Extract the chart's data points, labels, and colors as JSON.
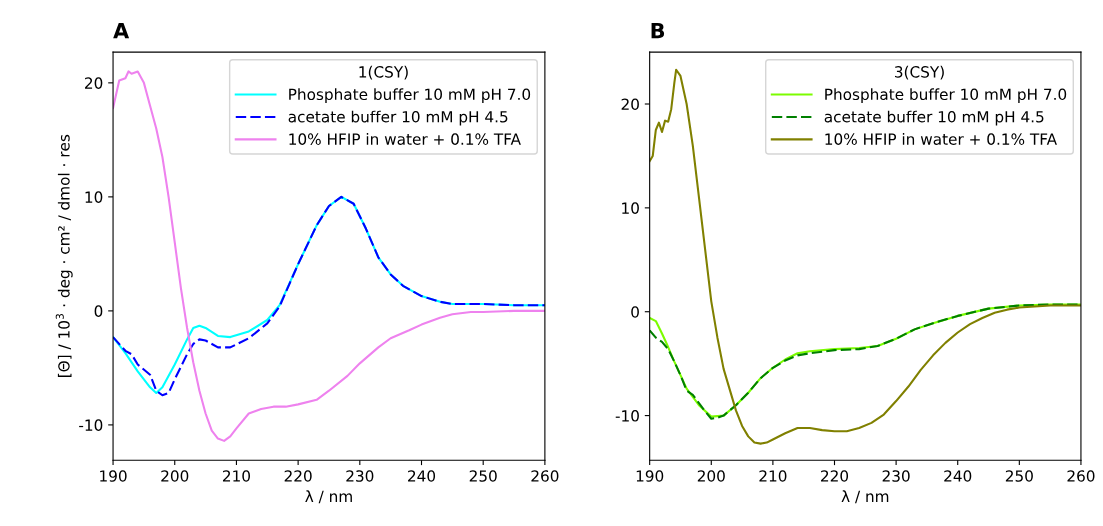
{
  "chart_data": [
    {
      "type": "line",
      "title": "A",
      "xlabel": "λ / nm",
      "ylabel": "[Θ] / 10$^{3}$ · deg · cm² / dmol · res",
      "legend_title": "1(CSY)",
      "legend": "top right",
      "grid": false,
      "xlim": [
        190,
        260
      ],
      "xticks": [
        190,
        200,
        210,
        220,
        230,
        240,
        250,
        260
      ],
      "ylim": [
        -13.1,
        22.7
      ],
      "yticks": [
        -10,
        0,
        10,
        20
      ],
      "series": [
        {
          "name": "Phosphate buffer 10 mM pH 7.0",
          "color": "#00ffff",
          "line_style": "solid",
          "x": [
            190,
            192,
            194,
            196,
            197,
            198,
            200,
            202,
            203,
            204,
            205,
            207,
            209,
            212,
            215,
            217,
            220,
            223,
            225,
            227,
            229,
            231,
            233,
            235,
            237,
            240,
            243,
            245,
            250,
            255,
            260
          ],
          "values": [
            -2.3,
            -3.7,
            -5.3,
            -6.7,
            -7.2,
            -6.7,
            -4.7,
            -2.5,
            -1.5,
            -1.3,
            -1.5,
            -2.2,
            -2.3,
            -1.8,
            -0.8,
            0.5,
            4.1,
            7.5,
            9.2,
            10.0,
            9.4,
            7.2,
            4.7,
            3.2,
            2.2,
            1.3,
            0.8,
            0.6,
            0.6,
            0.5,
            0.5
          ]
        },
        {
          "name": "acetate buffer 10 mM pH 4.5",
          "color": "#0000ff",
          "line_style": "dashed",
          "x": [
            190,
            192,
            193,
            194,
            196,
            197,
            198,
            199,
            200,
            202,
            203,
            204,
            205,
            207,
            209,
            212,
            215,
            217,
            220,
            223,
            225,
            227,
            229,
            231,
            233,
            235,
            237,
            240,
            243,
            245,
            250,
            255,
            260
          ],
          "values": [
            -2.3,
            -3.5,
            -3.8,
            -4.7,
            -5.6,
            -7.0,
            -7.4,
            -7.2,
            -6.0,
            -3.8,
            -2.9,
            -2.5,
            -2.6,
            -3.2,
            -3.2,
            -2.4,
            -1.1,
            0.4,
            4.1,
            7.5,
            9.2,
            10.0,
            9.4,
            7.2,
            4.7,
            3.2,
            2.2,
            1.3,
            0.8,
            0.6,
            0.6,
            0.5,
            0.5
          ]
        },
        {
          "name": "10% HFIP in water + 0.1% TFA",
          "color": "#ee82ee",
          "line_style": "solid",
          "x": [
            190,
            191,
            192,
            192.5,
            193,
            194,
            195,
            196,
            197,
            198,
            199,
            200,
            201,
            202,
            203,
            204,
            205,
            206,
            207,
            208,
            209,
            210,
            212,
            214,
            216,
            218,
            220,
            223,
            225,
            228,
            230,
            233,
            235,
            238,
            240,
            243,
            245,
            248,
            250,
            255,
            260
          ],
          "values": [
            17.8,
            20.2,
            20.4,
            21.0,
            20.8,
            21.0,
            20.0,
            18.0,
            16.0,
            13.5,
            10.0,
            6.0,
            2.0,
            -1.5,
            -4.5,
            -7.0,
            -9.0,
            -10.5,
            -11.2,
            -11.4,
            -11.0,
            -10.3,
            -9.0,
            -8.6,
            -8.4,
            -8.4,
            -8.2,
            -7.8,
            -7.0,
            -5.7,
            -4.6,
            -3.2,
            -2.4,
            -1.7,
            -1.2,
            -0.6,
            -0.3,
            -0.1,
            -0.1,
            0.0,
            0.0
          ]
        }
      ]
    },
    {
      "type": "line",
      "title": "B",
      "xlabel": "λ / nm",
      "legend_title": "3(CSY)",
      "legend": "top right",
      "grid": false,
      "xlim": [
        190,
        260
      ],
      "xticks": [
        190,
        200,
        210,
        220,
        230,
        240,
        250,
        260
      ],
      "ylim": [
        -14.3,
        25.0
      ],
      "yticks": [
        -10,
        0,
        10,
        20
      ],
      "series": [
        {
          "name": "Phosphate buffer 10 mM pH 7.0",
          "color": "#7cfc00",
          "line_style": "solid",
          "x": [
            190,
            191,
            192,
            193,
            194,
            195,
            196,
            198,
            200,
            202,
            204,
            206,
            208,
            210,
            212,
            214,
            216,
            220,
            224,
            227,
            230,
            233,
            236,
            240,
            245,
            250,
            255,
            260
          ],
          "values": [
            -0.6,
            -0.9,
            -2.1,
            -3.4,
            -4.8,
            -6.1,
            -7.4,
            -9.0,
            -10.1,
            -10.0,
            -9.0,
            -7.8,
            -6.4,
            -5.4,
            -4.6,
            -4.0,
            -3.8,
            -3.6,
            -3.5,
            -3.3,
            -2.6,
            -1.7,
            -1.1,
            -0.4,
            0.3,
            0.6,
            0.7,
            0.7
          ]
        },
        {
          "name": "acetate buffer 10 mM pH 4.5",
          "color": "#008000",
          "line_style": "dashed",
          "x": [
            190,
            191,
            192,
            193,
            194,
            195,
            196,
            197,
            198,
            199,
            200,
            201,
            202,
            204,
            206,
            208,
            210,
            212,
            214,
            216,
            220,
            224,
            227,
            230,
            233,
            236,
            240,
            245,
            250,
            255,
            260
          ],
          "values": [
            -1.8,
            -2.5,
            -2.9,
            -3.6,
            -4.8,
            -6.1,
            -7.6,
            -8.0,
            -8.8,
            -9.6,
            -10.3,
            -10.2,
            -10.0,
            -9.0,
            -7.8,
            -6.4,
            -5.4,
            -4.7,
            -4.2,
            -4.0,
            -3.7,
            -3.6,
            -3.3,
            -2.6,
            -1.7,
            -1.1,
            -0.4,
            0.3,
            0.6,
            0.7,
            0.7
          ]
        },
        {
          "name": "10% HFIP in water + 0.1% TFA",
          "color": "#808000",
          "line_style": "solid",
          "x": [
            190,
            190.5,
            191,
            191.5,
            192,
            192.5,
            193,
            193.5,
            194,
            194.3,
            195,
            196,
            197,
            198,
            199,
            200,
            201,
            202,
            203,
            204,
            205,
            206,
            207,
            208,
            209,
            210,
            212,
            214,
            216,
            218,
            220,
            222,
            224,
            226,
            228,
            230,
            232,
            234,
            236,
            238,
            240,
            242,
            244,
            246,
            248,
            250,
            255,
            260
          ],
          "values": [
            14.5,
            15.0,
            17.5,
            18.2,
            17.3,
            18.4,
            18.3,
            19.5,
            22.0,
            23.3,
            22.7,
            20.0,
            16.0,
            11.0,
            6.0,
            1.0,
            -2.5,
            -5.5,
            -7.5,
            -9.5,
            -11.0,
            -12.0,
            -12.6,
            -12.7,
            -12.6,
            -12.3,
            -11.7,
            -11.2,
            -11.2,
            -11.4,
            -11.5,
            -11.5,
            -11.2,
            -10.7,
            -9.9,
            -8.6,
            -7.2,
            -5.6,
            -4.2,
            -3.0,
            -2.0,
            -1.2,
            -0.6,
            -0.1,
            0.2,
            0.4,
            0.6,
            0.6
          ]
        }
      ]
    }
  ]
}
